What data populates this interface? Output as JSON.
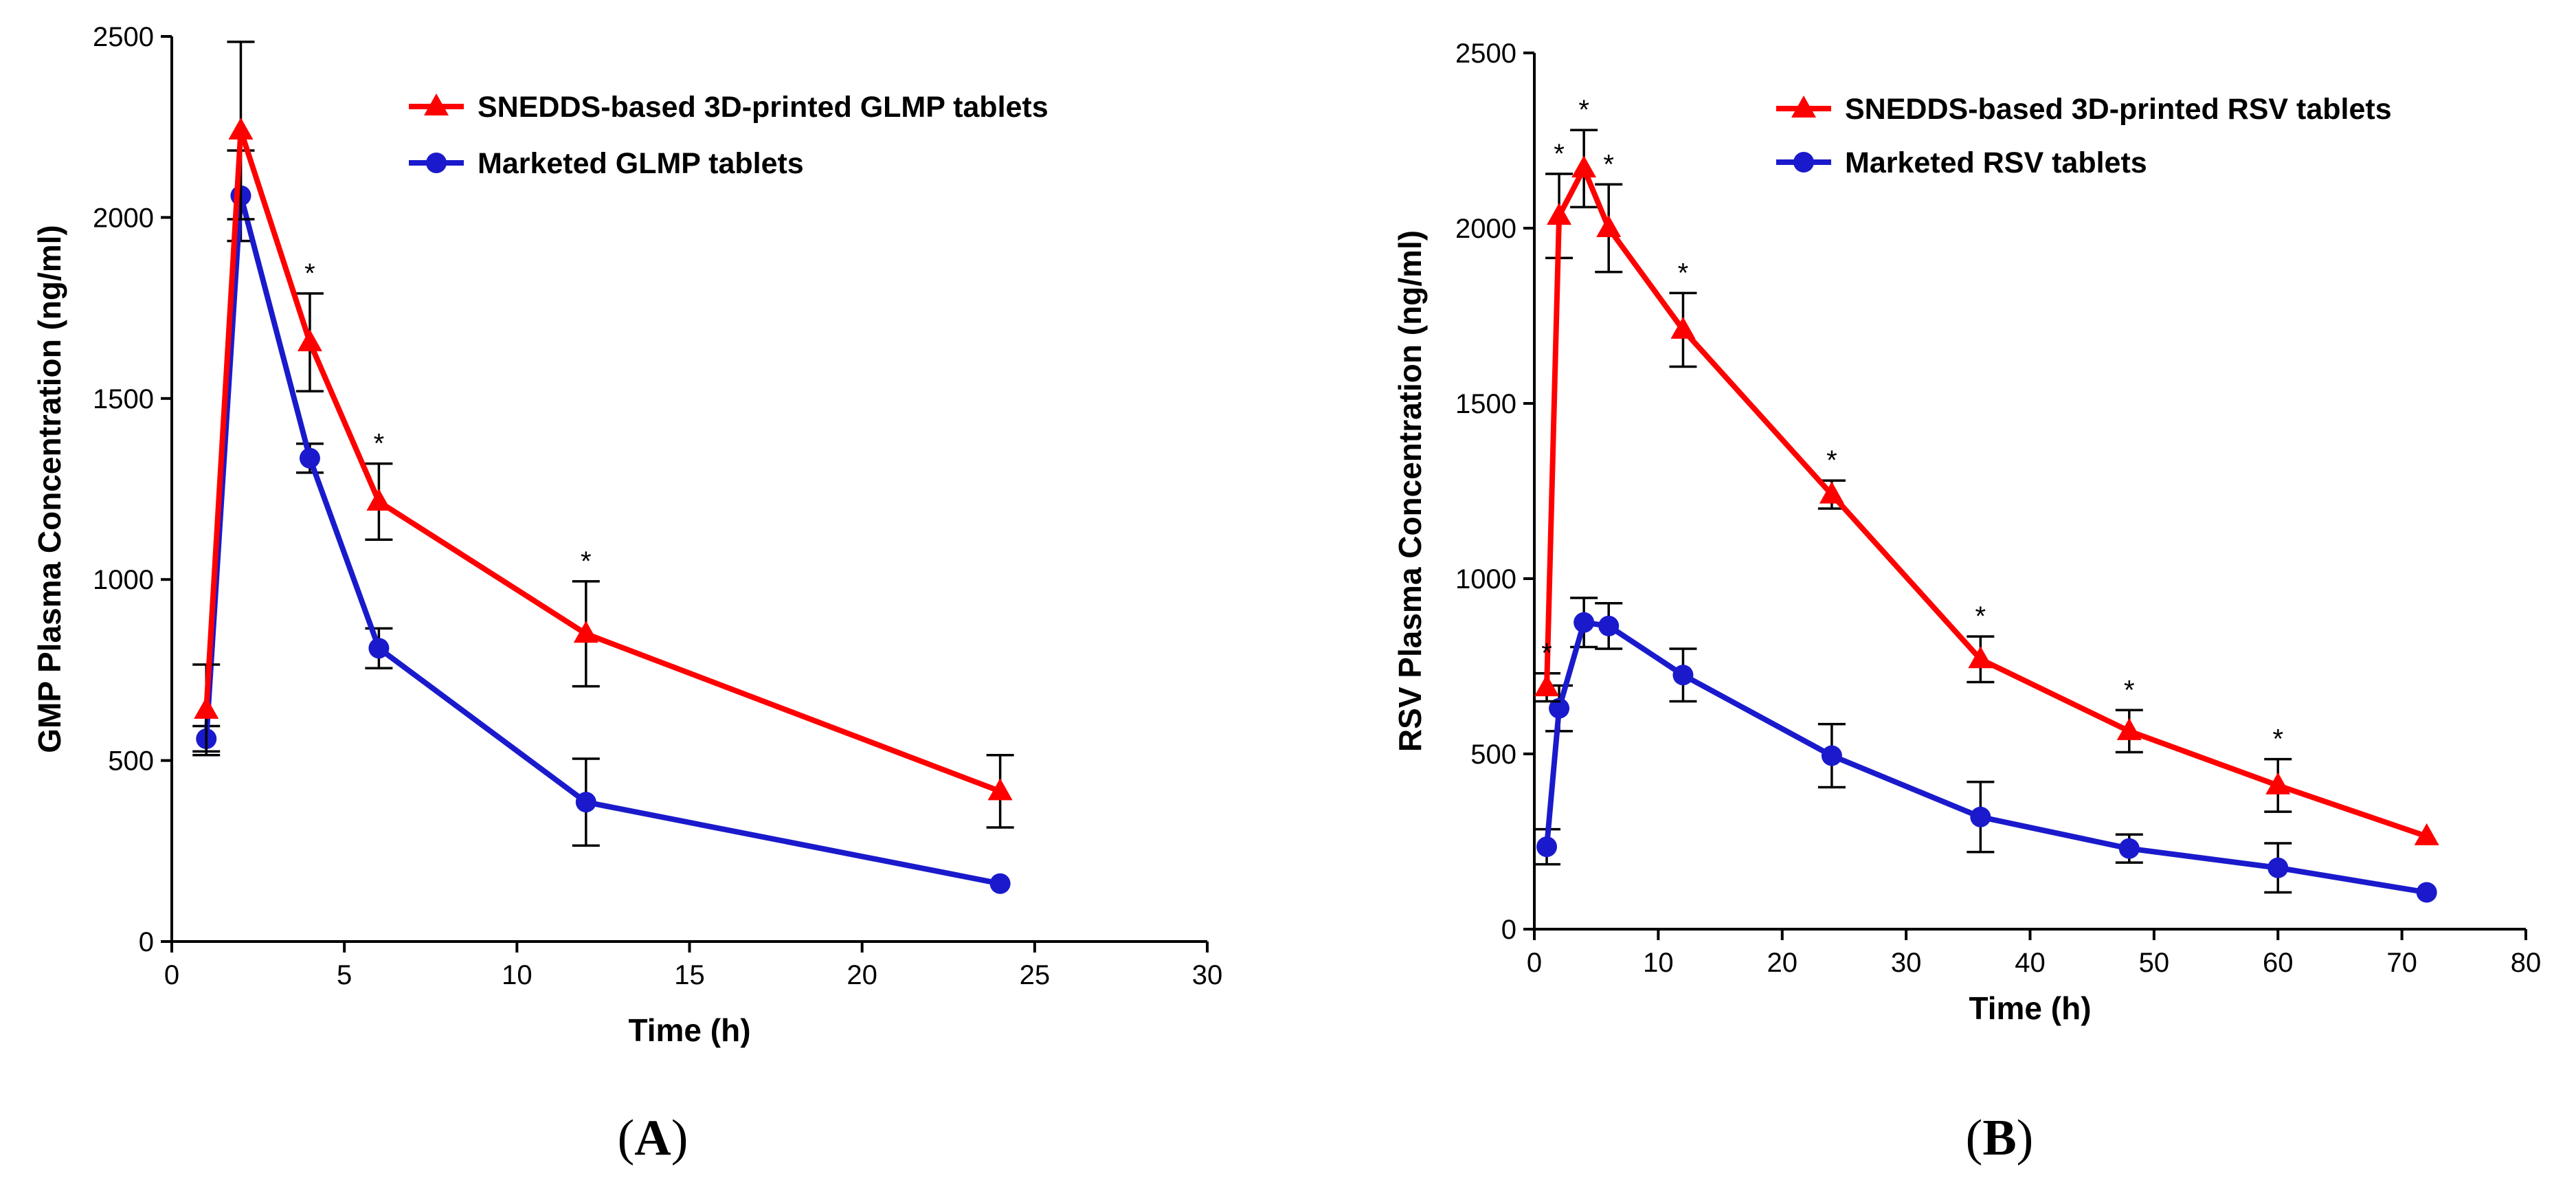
{
  "chart_data": [
    {
      "type": "line",
      "panel": "(A)",
      "panel_letter": "A",
      "xlabel": "Time (h)",
      "ylabel": "GMP Plasma Concentration (ng/ml)",
      "xlim": [
        0,
        30
      ],
      "ylim": [
        0,
        2500
      ],
      "xticks": [
        0,
        5,
        10,
        15,
        20,
        25,
        30
      ],
      "yticks": [
        0,
        500,
        1000,
        1500,
        2000,
        2500
      ],
      "legend_position": "top-right",
      "significance_marker": "*",
      "series": [
        {
          "name": "SNEDDS-based 3D-printed GLMP tablets",
          "color": "#ff0000",
          "marker": "triangle",
          "x": [
            1,
            2,
            4,
            6,
            12,
            24
          ],
          "y": [
            640,
            2240,
            1655,
            1215,
            850,
            415
          ],
          "err": [
            125,
            245,
            135,
            105,
            145,
            100
          ],
          "significant": [
            false,
            false,
            true,
            true,
            true,
            false
          ]
        },
        {
          "name": "Marketed GLMP tablets",
          "color": "#1a1acc",
          "marker": "circle",
          "x": [
            1,
            2,
            4,
            6,
            12,
            24
          ],
          "y": [
            560,
            2060,
            1335,
            810,
            385,
            160
          ],
          "err": [
            35,
            125,
            40,
            55,
            120,
            0
          ],
          "significant": [
            false,
            false,
            false,
            false,
            false,
            false
          ]
        }
      ]
    },
    {
      "type": "line",
      "panel": "(B)",
      "panel_letter": "B",
      "xlabel": "Time (h)",
      "ylabel": "RSV Plasma Concentration (ng/ml)",
      "xlim": [
        0,
        80
      ],
      "ylim": [
        0,
        2500
      ],
      "xticks": [
        0,
        10,
        20,
        30,
        40,
        50,
        60,
        70,
        80
      ],
      "yticks": [
        0,
        500,
        1000,
        1500,
        2000,
        2500
      ],
      "legend_position": "top-right",
      "significance_marker": "*",
      "series": [
        {
          "name": "SNEDDS-based 3D-printed RSV tablets",
          "color": "#ff0000",
          "marker": "triangle",
          "x": [
            1,
            2,
            4,
            6,
            12,
            24,
            36,
            48,
            60,
            72
          ],
          "y": [
            690,
            2035,
            2170,
            2000,
            1710,
            1240,
            770,
            565,
            410,
            265
          ],
          "err": [
            40,
            120,
            110,
            125,
            105,
            40,
            65,
            60,
            75,
            0
          ],
          "significant": [
            true,
            true,
            true,
            true,
            true,
            true,
            true,
            true,
            true,
            false
          ]
        },
        {
          "name": "Marketed RSV tablets",
          "color": "#1a1acc",
          "marker": "circle",
          "x": [
            1,
            2,
            4,
            6,
            12,
            24,
            36,
            48,
            60,
            72
          ],
          "y": [
            235,
            630,
            875,
            865,
            725,
            495,
            320,
            230,
            175,
            105
          ],
          "err": [
            50,
            65,
            70,
            65,
            75,
            90,
            100,
            40,
            70,
            0
          ],
          "significant": [
            false,
            false,
            false,
            false,
            false,
            false,
            false,
            false,
            false,
            false
          ]
        }
      ]
    }
  ]
}
